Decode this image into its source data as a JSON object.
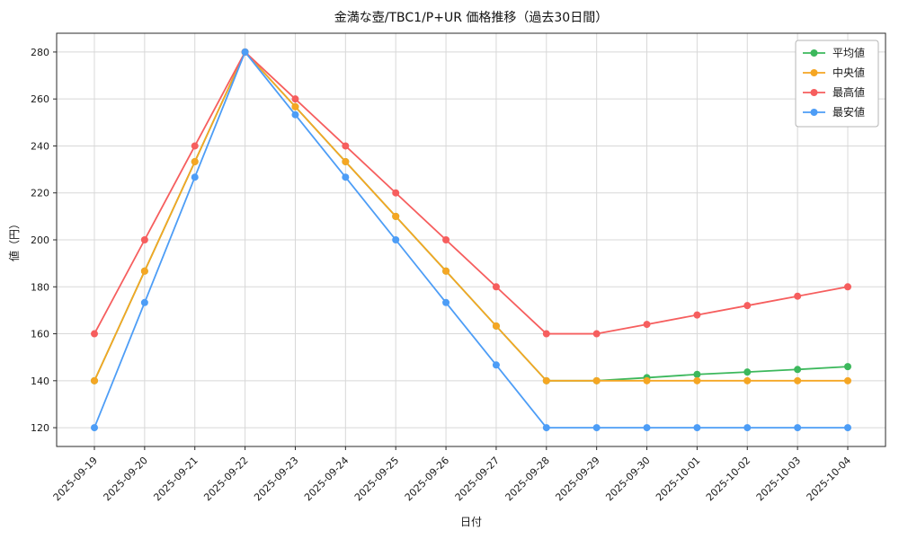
{
  "chart_data": {
    "type": "line",
    "title": "金満な壺/TBC1/P+UR 価格推移（過去30日間）",
    "xlabel": "日付",
    "ylabel": "値（円）",
    "ylim": [
      112,
      288
    ],
    "yticks": [
      120,
      140,
      160,
      180,
      200,
      220,
      240,
      260,
      280
    ],
    "grid": true,
    "legend_position": "upper right",
    "categories": [
      "2025-09-19",
      "2025-09-20",
      "2025-09-21",
      "2025-09-22",
      "2025-09-23",
      "2025-09-24",
      "2025-09-25",
      "2025-09-26",
      "2025-09-27",
      "2025-09-28",
      "2025-09-29",
      "2025-09-30",
      "2025-10-01",
      "2025-10-02",
      "2025-10-03",
      "2025-10-04"
    ],
    "series": [
      {
        "name": "平均値",
        "color": "#3cb85c",
        "values": [
          140,
          186.7,
          233.3,
          280,
          256.7,
          233.3,
          210,
          186.7,
          163.3,
          140,
          140,
          141.3,
          142.7,
          143.7,
          144.8,
          146
        ]
      },
      {
        "name": "中央値",
        "color": "#f5a623",
        "values": [
          140,
          186.7,
          233.3,
          280,
          256.7,
          233.3,
          210,
          186.7,
          163.3,
          140,
          140,
          140,
          140,
          140,
          140,
          140
        ]
      },
      {
        "name": "最高値",
        "color": "#f65e5e",
        "values": [
          160,
          200,
          240,
          280,
          260,
          240,
          220,
          200,
          180,
          160,
          160,
          164,
          168,
          172,
          176,
          180
        ]
      },
      {
        "name": "最安値",
        "color": "#4d9df6",
        "values": [
          120,
          173.3,
          226.7,
          280,
          253.3,
          226.7,
          200,
          173.3,
          146.7,
          120,
          120,
          120,
          120,
          120,
          120,
          120
        ]
      }
    ],
    "colors": {
      "grid": "#d8d8d8",
      "axis": "#2a2a2a",
      "text": "#1a1a1a",
      "legend_border": "#b5b5b5",
      "background": "#ffffff"
    }
  }
}
